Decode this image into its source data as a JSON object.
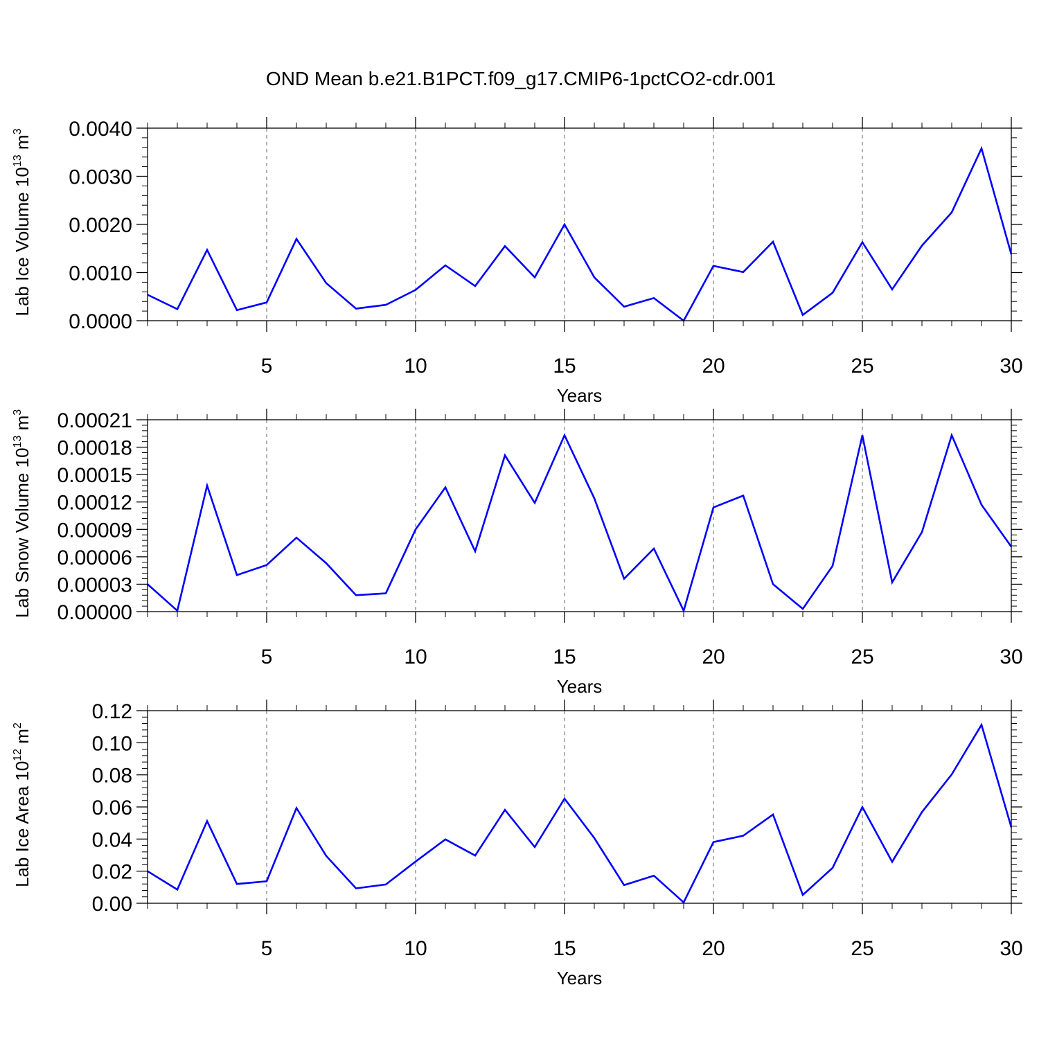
{
  "figure": {
    "title": "OND Mean b.e21.B1PCT.f09_g17.CMIP6-1pctCO2-cdr.001"
  },
  "colors": {
    "line": "#0000ff",
    "axes": "#000000",
    "grid": "#888888"
  },
  "chart_data": [
    {
      "type": "line",
      "title": "OND Mean b.e21.B1PCT.f09_g17.CMIP6-1pctCO2-cdr.001",
      "xlabel": "Years",
      "ylabel": "Lab Ice Volume 10",
      "ylabel_exp": "13",
      "ylabel_unit": "m",
      "ylabel_unit_exp": "3",
      "xlim": [
        1,
        30
      ],
      "ylim": [
        0,
        0.004
      ],
      "x_ticks": [
        "5",
        "10",
        "15",
        "20",
        "25",
        "30"
      ],
      "y_ticks": [
        "0.0000",
        "0.0010",
        "0.0020",
        "0.0030",
        "0.0040"
      ],
      "grid": "vertical dashed at major x ticks",
      "x": [
        1,
        2,
        3,
        4,
        5,
        6,
        7,
        8,
        9,
        10,
        11,
        12,
        13,
        14,
        15,
        16,
        17,
        18,
        19,
        20,
        21,
        22,
        23,
        24,
        25,
        26,
        27,
        28,
        29,
        30
      ],
      "values": [
        0.00054,
        0.00024,
        0.00147,
        0.00022,
        0.00038,
        0.0017,
        0.00078,
        0.00025,
        0.00033,
        0.00064,
        0.00115,
        0.00072,
        0.00155,
        0.0009,
        0.002,
        0.0009,
        0.00029,
        0.00047,
        0.0,
        0.00114,
        0.00101,
        0.00164,
        0.00012,
        0.00058,
        0.00163,
        0.00065,
        0.00156,
        0.00225,
        0.00358,
        0.00138
      ]
    },
    {
      "type": "line",
      "xlabel": "Years",
      "ylabel": "Lab Snow Volume 10",
      "ylabel_exp": "13",
      "ylabel_unit": "m",
      "ylabel_unit_exp": "3",
      "xlim": [
        1,
        30
      ],
      "ylim": [
        0,
        0.00021
      ],
      "x_ticks": [
        "5",
        "10",
        "15",
        "20",
        "25",
        "30"
      ],
      "y_ticks": [
        "0.00000",
        "0.00003",
        "0.00006",
        "0.00009",
        "0.00012",
        "0.00015",
        "0.00018",
        "0.00021"
      ],
      "grid": "vertical dashed at major x ticks",
      "x": [
        1,
        2,
        3,
        4,
        5,
        6,
        7,
        8,
        9,
        10,
        11,
        12,
        13,
        14,
        15,
        16,
        17,
        18,
        19,
        20,
        21,
        22,
        23,
        24,
        25,
        26,
        27,
        28,
        29,
        30
      ],
      "values": [
        3e-05,
        1e-06,
        0.000138,
        4e-05,
        5.1e-05,
        8.1e-05,
        5.3e-05,
        1.8e-05,
        2e-05,
        9e-05,
        0.000136,
        6.6e-05,
        0.000171,
        0.000119,
        0.000193,
        0.000124,
        3.6e-05,
        6.9e-05,
        1e-06,
        0.000114,
        0.000127,
        3e-05,
        3e-06,
        5e-05,
        0.000193,
        3.2e-05,
        8.7e-05,
        0.000193,
        0.000117,
        7.1e-05
      ]
    },
    {
      "type": "line",
      "xlabel": "Years",
      "ylabel": "Lab Ice Area 10",
      "ylabel_exp": "12",
      "ylabel_unit": "m",
      "ylabel_unit_exp": "2",
      "xlim": [
        1,
        30
      ],
      "ylim": [
        0,
        0.12
      ],
      "x_ticks": [
        "5",
        "10",
        "15",
        "20",
        "25",
        "30"
      ],
      "y_ticks": [
        "0.00",
        "0.02",
        "0.04",
        "0.06",
        "0.08",
        "0.10",
        "0.12"
      ],
      "grid": "vertical dashed at major x ticks",
      "x": [
        1,
        2,
        3,
        4,
        5,
        6,
        7,
        8,
        9,
        10,
        11,
        12,
        13,
        14,
        15,
        16,
        17,
        18,
        19,
        20,
        21,
        22,
        23,
        24,
        25,
        26,
        27,
        28,
        29,
        30
      ],
      "values": [
        0.02,
        0.0085,
        0.0512,
        0.012,
        0.0137,
        0.0593,
        0.0295,
        0.0093,
        0.0117,
        0.026,
        0.0398,
        0.0297,
        0.0582,
        0.035,
        0.0652,
        0.0406,
        0.0113,
        0.0172,
        0.0005,
        0.0381,
        0.0421,
        0.0553,
        0.0052,
        0.022,
        0.0599,
        0.0258,
        0.0568,
        0.0803,
        0.1112,
        0.0474
      ]
    }
  ]
}
